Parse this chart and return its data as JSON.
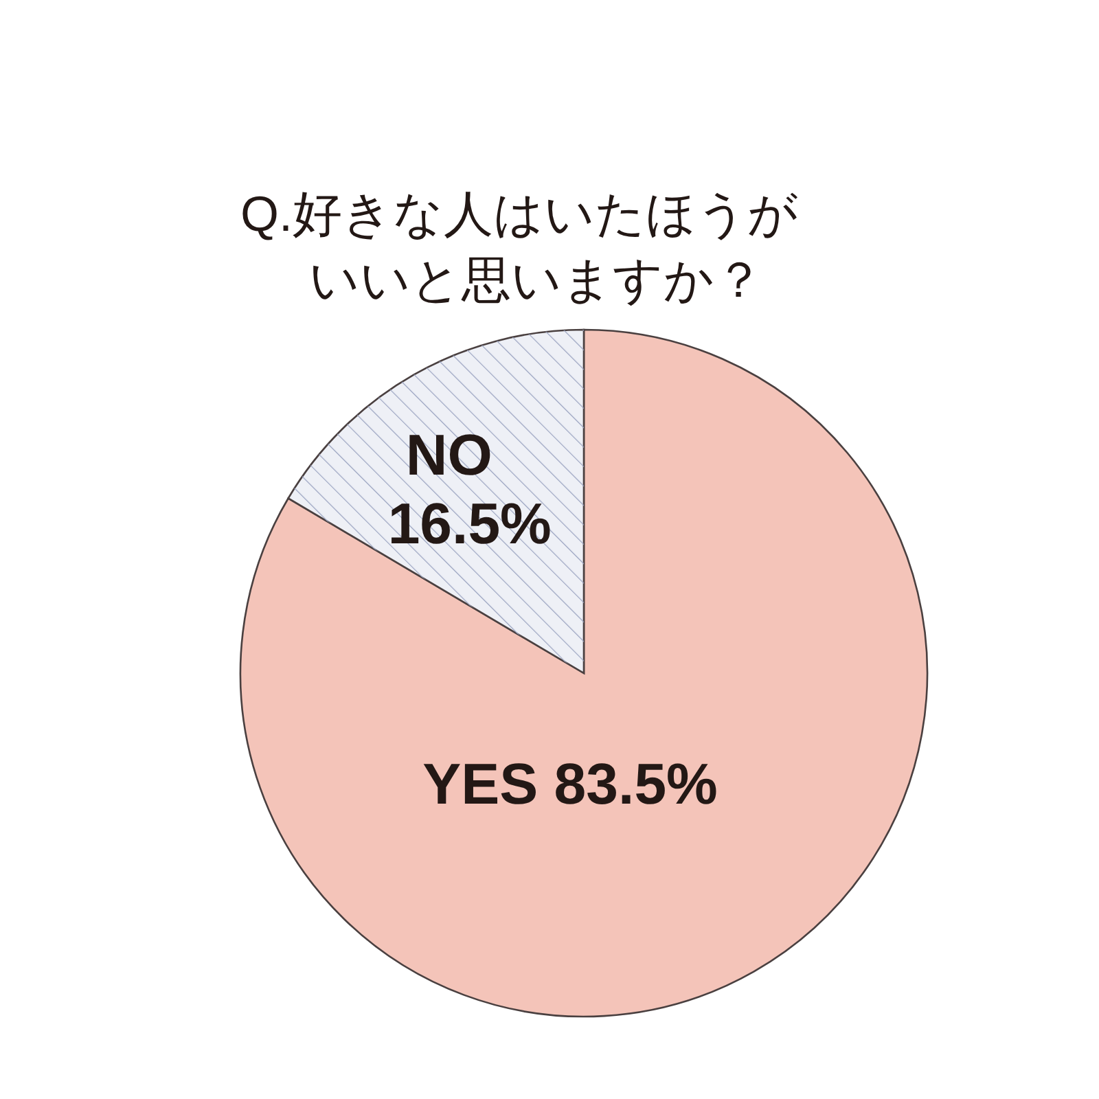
{
  "chart_data": {
    "type": "pie",
    "title": "Q.好きな人はいたほうがいいと思いますか？",
    "categories": [
      "YES",
      "NO"
    ],
    "values": [
      83.5,
      16.5
    ],
    "colors": [
      "#f4c4b9",
      "#eef0f6"
    ],
    "value_labels": [
      "83.5%",
      "16.5%"
    ]
  }
}
